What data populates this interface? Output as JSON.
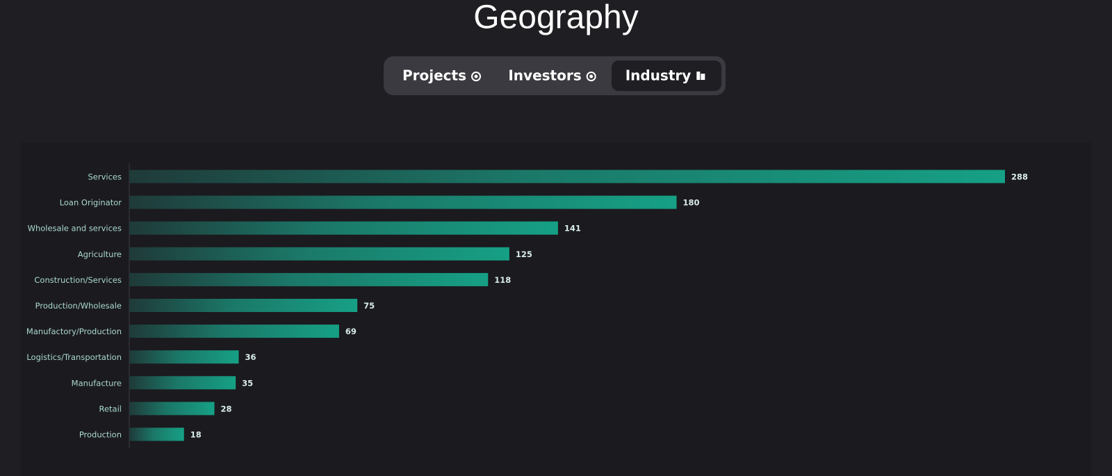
{
  "header": {
    "title": "Geography"
  },
  "tabs": [
    {
      "label": "Projects",
      "active": false
    },
    {
      "label": "Investors",
      "active": false
    },
    {
      "label": "Industry",
      "active": true
    }
  ],
  "chart_data": {
    "type": "bar",
    "orientation": "horizontal",
    "categories": [
      "Services",
      "Loan Originator",
      "Wholesale and services",
      "Agriculture",
      "Construction/Services",
      "Production/Wholesale",
      "Manufactory/Production",
      "Logistics/Transportation",
      "Manufacture",
      "Retail",
      "Production"
    ],
    "values": [
      288,
      180,
      141,
      125,
      118,
      75,
      69,
      36,
      35,
      28,
      18
    ],
    "color": "#16a085"
  }
}
